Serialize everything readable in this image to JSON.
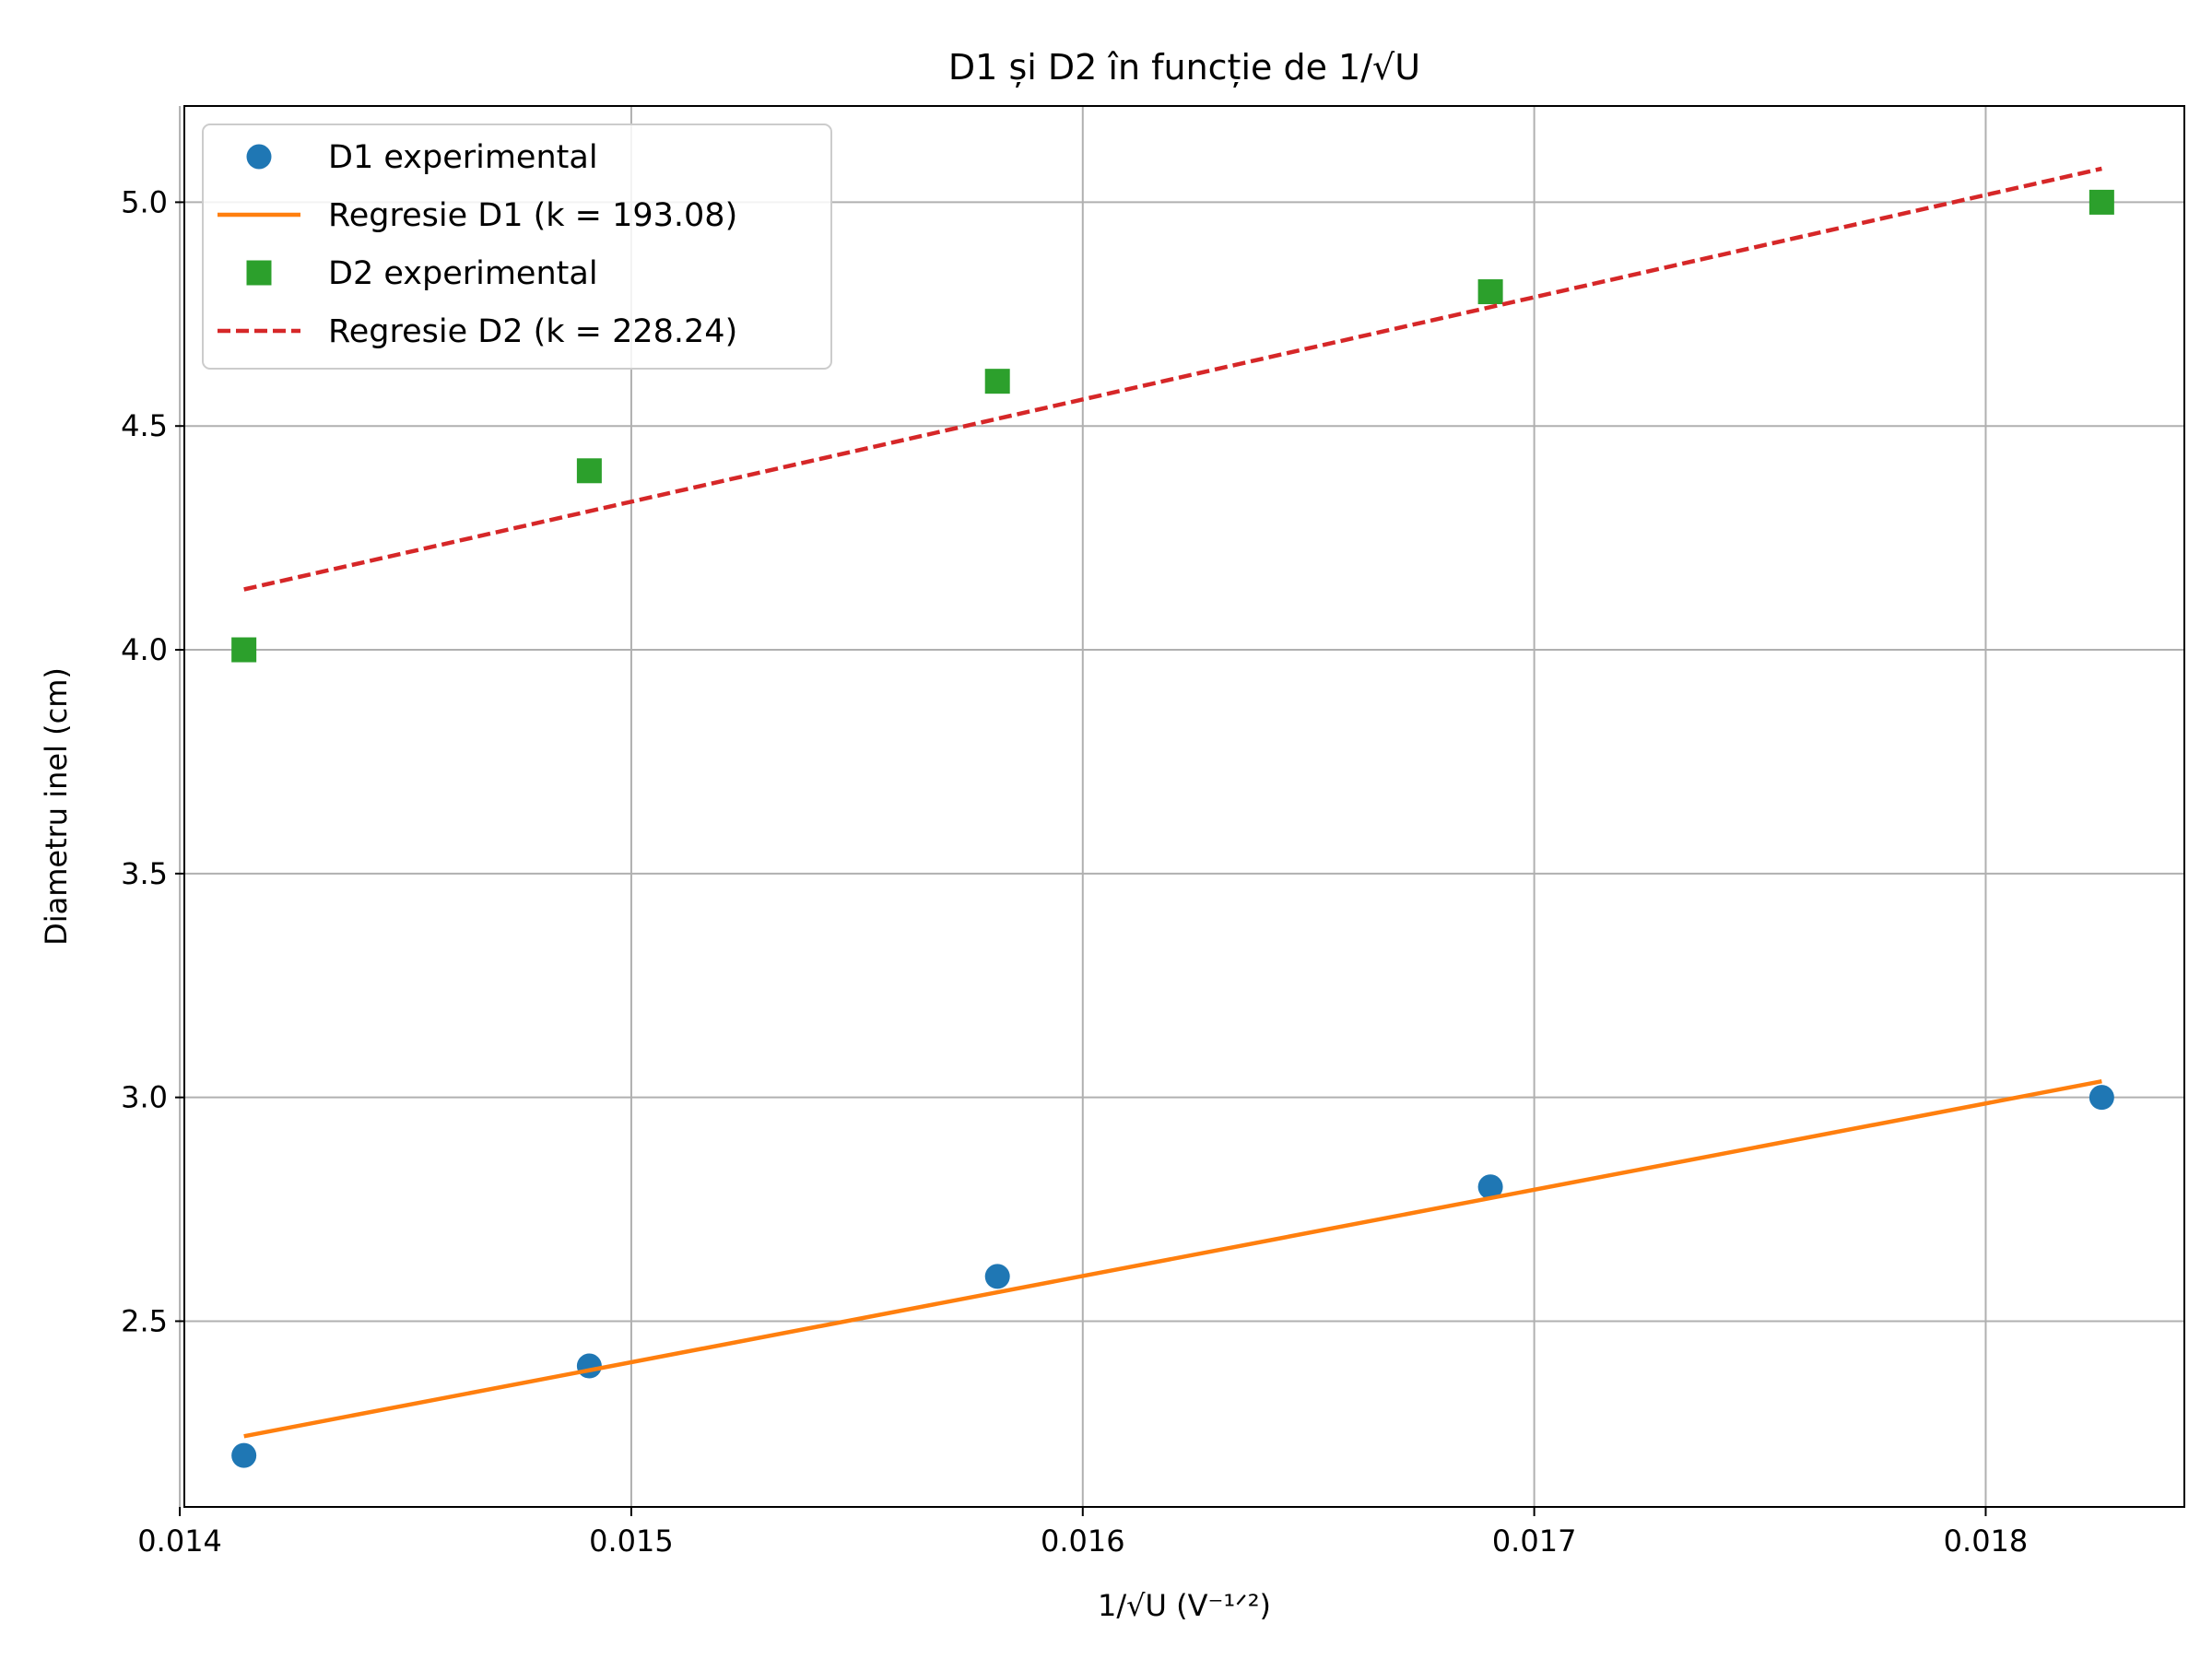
{
  "chart_data": {
    "type": "scatter",
    "title": "D1 și D2 în funcție de 1/√U",
    "xlabel": "1/√U (V⁻¹ᐟ²)",
    "ylabel": "Diametru inel (cm)",
    "xlim": [
      0.01401,
      0.01844
    ],
    "ylim": [
      2.085,
      5.215
    ],
    "xticks": [
      0.014,
      0.015,
      0.016,
      0.017,
      0.018
    ],
    "xtick_labels": [
      "0.014",
      "0.015",
      "0.016",
      "0.017",
      "0.018"
    ],
    "yticks": [
      2.5,
      3.0,
      3.5,
      4.0,
      4.5,
      5.0
    ],
    "ytick_labels": [
      "2.5",
      "3.0",
      "3.5",
      "4.0",
      "4.5",
      "5.0"
    ],
    "grid": true,
    "legend_position": "top-left",
    "x": [
      0.014142,
      0.014907,
      0.015811,
      0.016903,
      0.018257
    ],
    "series": [
      {
        "name": "D1 experimental",
        "kind": "points",
        "marker": "circle",
        "color": "#1f77b4",
        "values": [
          2.2,
          2.4,
          2.6,
          2.8,
          3.0
        ]
      },
      {
        "name": "Regresie D1 (k = 193.08)",
        "kind": "line",
        "style": "solid",
        "color": "#ff7f0e",
        "x": [
          0.014142,
          0.018257
        ],
        "values": [
          2.243,
          3.036
        ]
      },
      {
        "name": "D2 experimental",
        "kind": "points",
        "marker": "square",
        "color": "#2ca02c",
        "values": [
          4.0,
          4.4,
          4.6,
          4.8,
          5.0
        ]
      },
      {
        "name": "Regresie D2 (k = 228.24)",
        "kind": "line",
        "style": "dashed",
        "color": "#d62728",
        "x": [
          0.014142,
          0.018257
        ],
        "values": [
          4.135,
          5.075
        ]
      }
    ]
  }
}
